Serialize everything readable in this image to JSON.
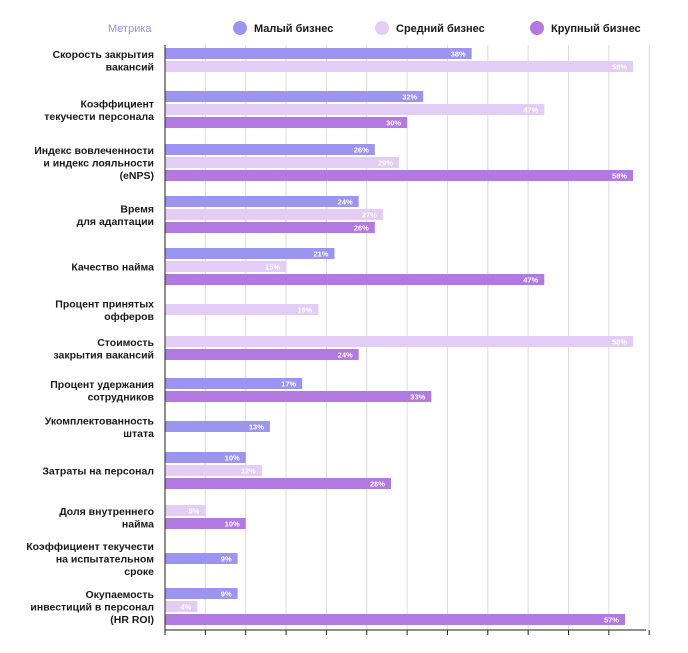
{
  "chart_data": {
    "type": "bar",
    "orientation": "horizontal",
    "legend_title": "Метрика",
    "categories": [
      [
        "Скорость закрытия",
        "вакансий"
      ],
      [
        "Коэффициент",
        "текучести персонала"
      ],
      [
        "Индекс вовлеченности",
        "и индекс лояльности",
        "(eNPS)"
      ],
      [
        "Время",
        "для адаптации"
      ],
      [
        "Качество найма"
      ],
      [
        "Процент принятых",
        "офферов"
      ],
      [
        "Стоимость",
        "закрытия вакансий"
      ],
      [
        "Процент удержания",
        "сотрудников"
      ],
      [
        "Укомплектованность",
        "штата"
      ],
      [
        "Затраты на персонал"
      ],
      [
        "Доля внутреннего",
        "найма"
      ],
      [
        "Коэффициент текучести",
        "на испытательном",
        "сроке"
      ],
      [
        "Окупаемость",
        "инвестиций в персонал",
        "(HR ROI)"
      ]
    ],
    "series": [
      {
        "name": "Малый бизнес",
        "color": "#9b94f0",
        "values": [
          38,
          32,
          26,
          24,
          21,
          null,
          null,
          17,
          13,
          10,
          null,
          9,
          9
        ]
      },
      {
        "name": "Средний бизнес",
        "color": "#e3ccf5",
        "values": [
          58,
          47,
          29,
          27,
          15,
          19,
          58,
          null,
          null,
          12,
          5,
          null,
          4
        ]
      },
      {
        "name": "Крупный бизнес",
        "color": "#b279e0",
        "values": [
          null,
          30,
          58,
          26,
          47,
          null,
          24,
          33,
          null,
          28,
          10,
          null,
          57
        ]
      }
    ],
    "value_suffix": "%",
    "xlim": [
      0,
      60
    ],
    "grid": true,
    "legend_position": "top"
  }
}
